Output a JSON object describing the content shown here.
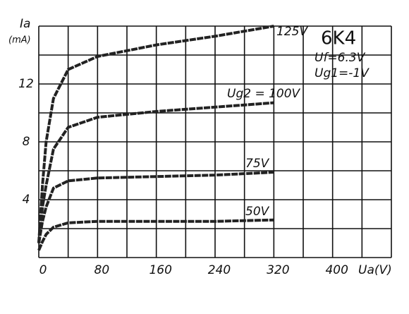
{
  "chart_data": {
    "type": "line",
    "title": "6K4",
    "annotations": [
      "Uf=6.3V",
      "Ug1=-1V"
    ],
    "y_label": "Ia",
    "y_unit": "(mA)",
    "x_label": "Ua(V)",
    "x": [
      0,
      5,
      10,
      20,
      40,
      80,
      160,
      240,
      320
    ],
    "series": [
      {
        "name": "125V",
        "color": "#222222",
        "values": [
          1,
          5,
          8,
          11,
          13,
          13.9,
          14.7,
          15.3,
          16
        ]
      },
      {
        "name": "Ug2 = 100V",
        "color": "#222222",
        "values": [
          1,
          3.5,
          5,
          7.5,
          9,
          9.7,
          10.1,
          10.4,
          10.7
        ]
      },
      {
        "name": "75V",
        "color": "#222222",
        "values": [
          1,
          2.5,
          3.5,
          4.8,
          5.3,
          5.5,
          5.6,
          5.7,
          5.9
        ]
      },
      {
        "name": "50V",
        "color": "#222222",
        "values": [
          0.5,
          1.1,
          1.6,
          2.1,
          2.4,
          2.5,
          2.5,
          2.5,
          2.6
        ]
      }
    ],
    "xlim": [
      0,
      480
    ],
    "ylim": [
      0,
      16
    ],
    "xticks": [
      0,
      80,
      160,
      240,
      320,
      400
    ],
    "yticks": [
      4,
      8,
      12
    ],
    "xgrid": [
      0,
      40,
      80,
      120,
      160,
      200,
      240,
      280,
      320,
      360,
      400,
      440,
      480
    ],
    "ygrid": [
      0,
      2,
      4,
      6,
      8,
      10,
      12,
      14,
      16
    ],
    "grid": true
  }
}
